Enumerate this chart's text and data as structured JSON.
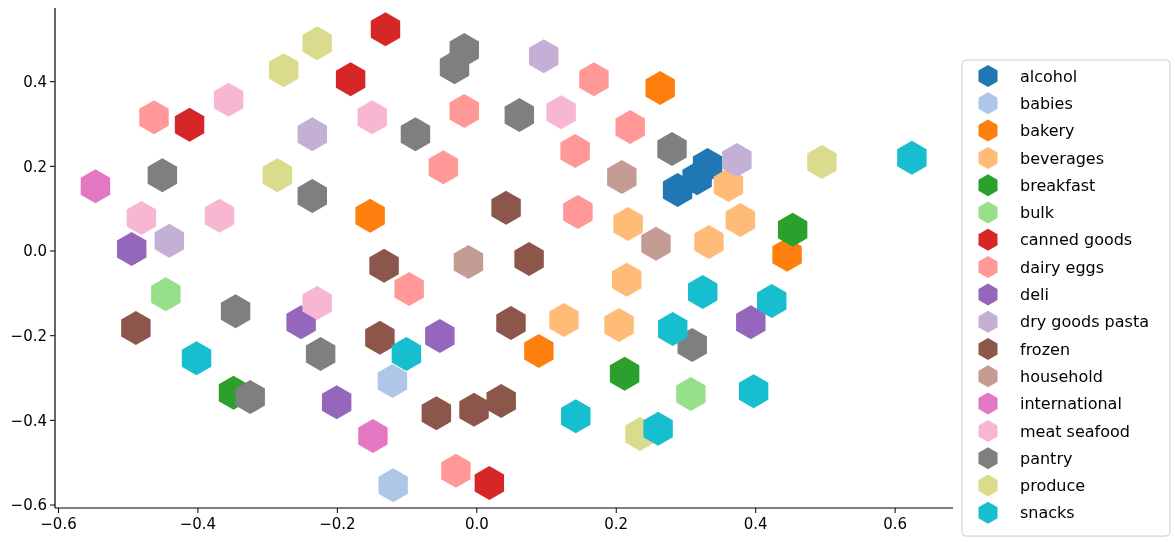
{
  "chart_data": {
    "type": "scatter",
    "legend": "right",
    "grid": false,
    "xlim": [
      -0.605,
      0.683
    ],
    "ylim": [
      -0.607,
      0.574
    ],
    "xticks": [
      -0.6,
      -0.4,
      -0.2,
      {
        "value": 0,
        "label": "0.0"
      },
      0.2,
      0.4,
      0.6
    ],
    "yticks": [
      -0.6,
      -0.4,
      -0.2,
      {
        "value": 0,
        "label": "0.0"
      },
      0.2,
      0.4
    ],
    "series": [
      {
        "name": "alcohol",
        "color": "#1f77b4",
        "x": [
          0.288,
          0.316,
          0.331
        ],
        "values": [
          0.144,
          0.172,
          0.203
        ]
      },
      {
        "name": "babies",
        "color": "#aec7e8",
        "x": [
          -0.121,
          -0.12
        ],
        "values": [
          -0.307,
          -0.553
        ]
      },
      {
        "name": "bakery",
        "color": "#ff7f0e",
        "x": [
          0.263,
          -0.153,
          0.445,
          0.089
        ],
        "values": [
          0.385,
          0.083,
          -0.009,
          -0.236
        ]
      },
      {
        "name": "beverages",
        "color": "#ffbb78",
        "x": [
          0.361,
          0.217,
          0.378,
          0.333,
          0.215,
          0.125,
          0.204
        ],
        "values": [
          0.156,
          0.064,
          0.073,
          0.021,
          -0.068,
          -0.163,
          -0.175
        ]
      },
      {
        "name": "breakfast",
        "color": "#2ca02c",
        "x": [
          0.453,
          0.212,
          -0.349
        ],
        "values": [
          0.05,
          -0.29,
          -0.335
        ]
      },
      {
        "name": "bulk",
        "color": "#98df8a",
        "x": [
          -0.446,
          0.307
        ],
        "values": [
          -0.102,
          -0.338
        ]
      },
      {
        "name": "canned goods",
        "color": "#d62728",
        "x": [
          -0.131,
          -0.181,
          -0.412,
          0.018
        ],
        "values": [
          0.524,
          0.406,
          0.298,
          -0.548
        ]
      },
      {
        "name": "dairy eggs",
        "color": "#ff9896",
        "x": [
          -0.463,
          -0.018,
          0.168,
          -0.048,
          0.22,
          0.141,
          0.145,
          -0.097,
          -0.03
        ],
        "values": [
          0.316,
          0.331,
          0.406,
          0.198,
          0.293,
          0.236,
          0.092,
          -0.09,
          -0.519
        ]
      },
      {
        "name": "deli",
        "color": "#9467bd",
        "x": [
          -0.495,
          -0.252,
          -0.053,
          -0.201,
          0.393
        ],
        "values": [
          0.005,
          -0.168,
          -0.201,
          -0.357,
          -0.168
        ]
      },
      {
        "name": "dry goods pasta",
        "color": "#c5b0d5",
        "x": [
          0.096,
          -0.236,
          -0.441,
          0.373
        ],
        "values": [
          0.46,
          0.276,
          0.024,
          0.215
        ]
      },
      {
        "name": "frozen",
        "color": "#8c564b",
        "x": [
          0.042,
          0.075,
          -0.133,
          -0.489,
          -0.139,
          0.049,
          -0.058,
          -0.004,
          0.035
        ],
        "values": [
          0.102,
          -0.019,
          -0.035,
          -0.182,
          -0.205,
          -0.17,
          -0.383,
          -0.375,
          -0.354
        ]
      },
      {
        "name": "household",
        "color": "#c49c94",
        "x": [
          0.208,
          -0.012,
          0.257
        ],
        "values": [
          0.175,
          -0.026,
          0.017
        ]
      },
      {
        "name": "international",
        "color": "#e377c2",
        "x": [
          -0.547,
          -0.149
        ],
        "values": [
          0.153,
          -0.437
        ]
      },
      {
        "name": "meat seafood",
        "color": "#f7b6d2",
        "x": [
          -0.356,
          -0.15,
          0.121,
          -0.481,
          -0.369,
          -0.229
        ],
        "values": [
          0.357,
          0.316,
          0.328,
          0.078,
          0.083,
          -0.123
        ]
      },
      {
        "name": "pantry",
        "color": "#7f7f7f",
        "x": [
          -0.018,
          -0.032,
          0.061,
          -0.088,
          -0.451,
          -0.236,
          0.28,
          -0.346,
          -0.224,
          -0.325,
          0.309
        ],
        "values": [
          0.475,
          0.434,
          0.321,
          0.276,
          0.179,
          0.13,
          0.241,
          -0.142,
          -0.243,
          -0.345,
          -0.222
        ]
      },
      {
        "name": "produce",
        "color": "#dbdb8d",
        "x": [
          -0.229,
          -0.277,
          -0.286,
          0.495,
          0.234
        ],
        "values": [
          0.491,
          0.427,
          0.179,
          0.21,
          -0.432
        ]
      },
      {
        "name": "snacks",
        "color": "#17becf",
        "x": [
          0.624,
          0.324,
          0.423,
          0.281,
          -0.402,
          -0.101,
          0.397,
          0.142,
          0.26
        ],
        "values": [
          0.22,
          -0.097,
          -0.118,
          -0.184,
          -0.253,
          -0.243,
          -0.331,
          -0.39,
          -0.42
        ]
      }
    ]
  }
}
